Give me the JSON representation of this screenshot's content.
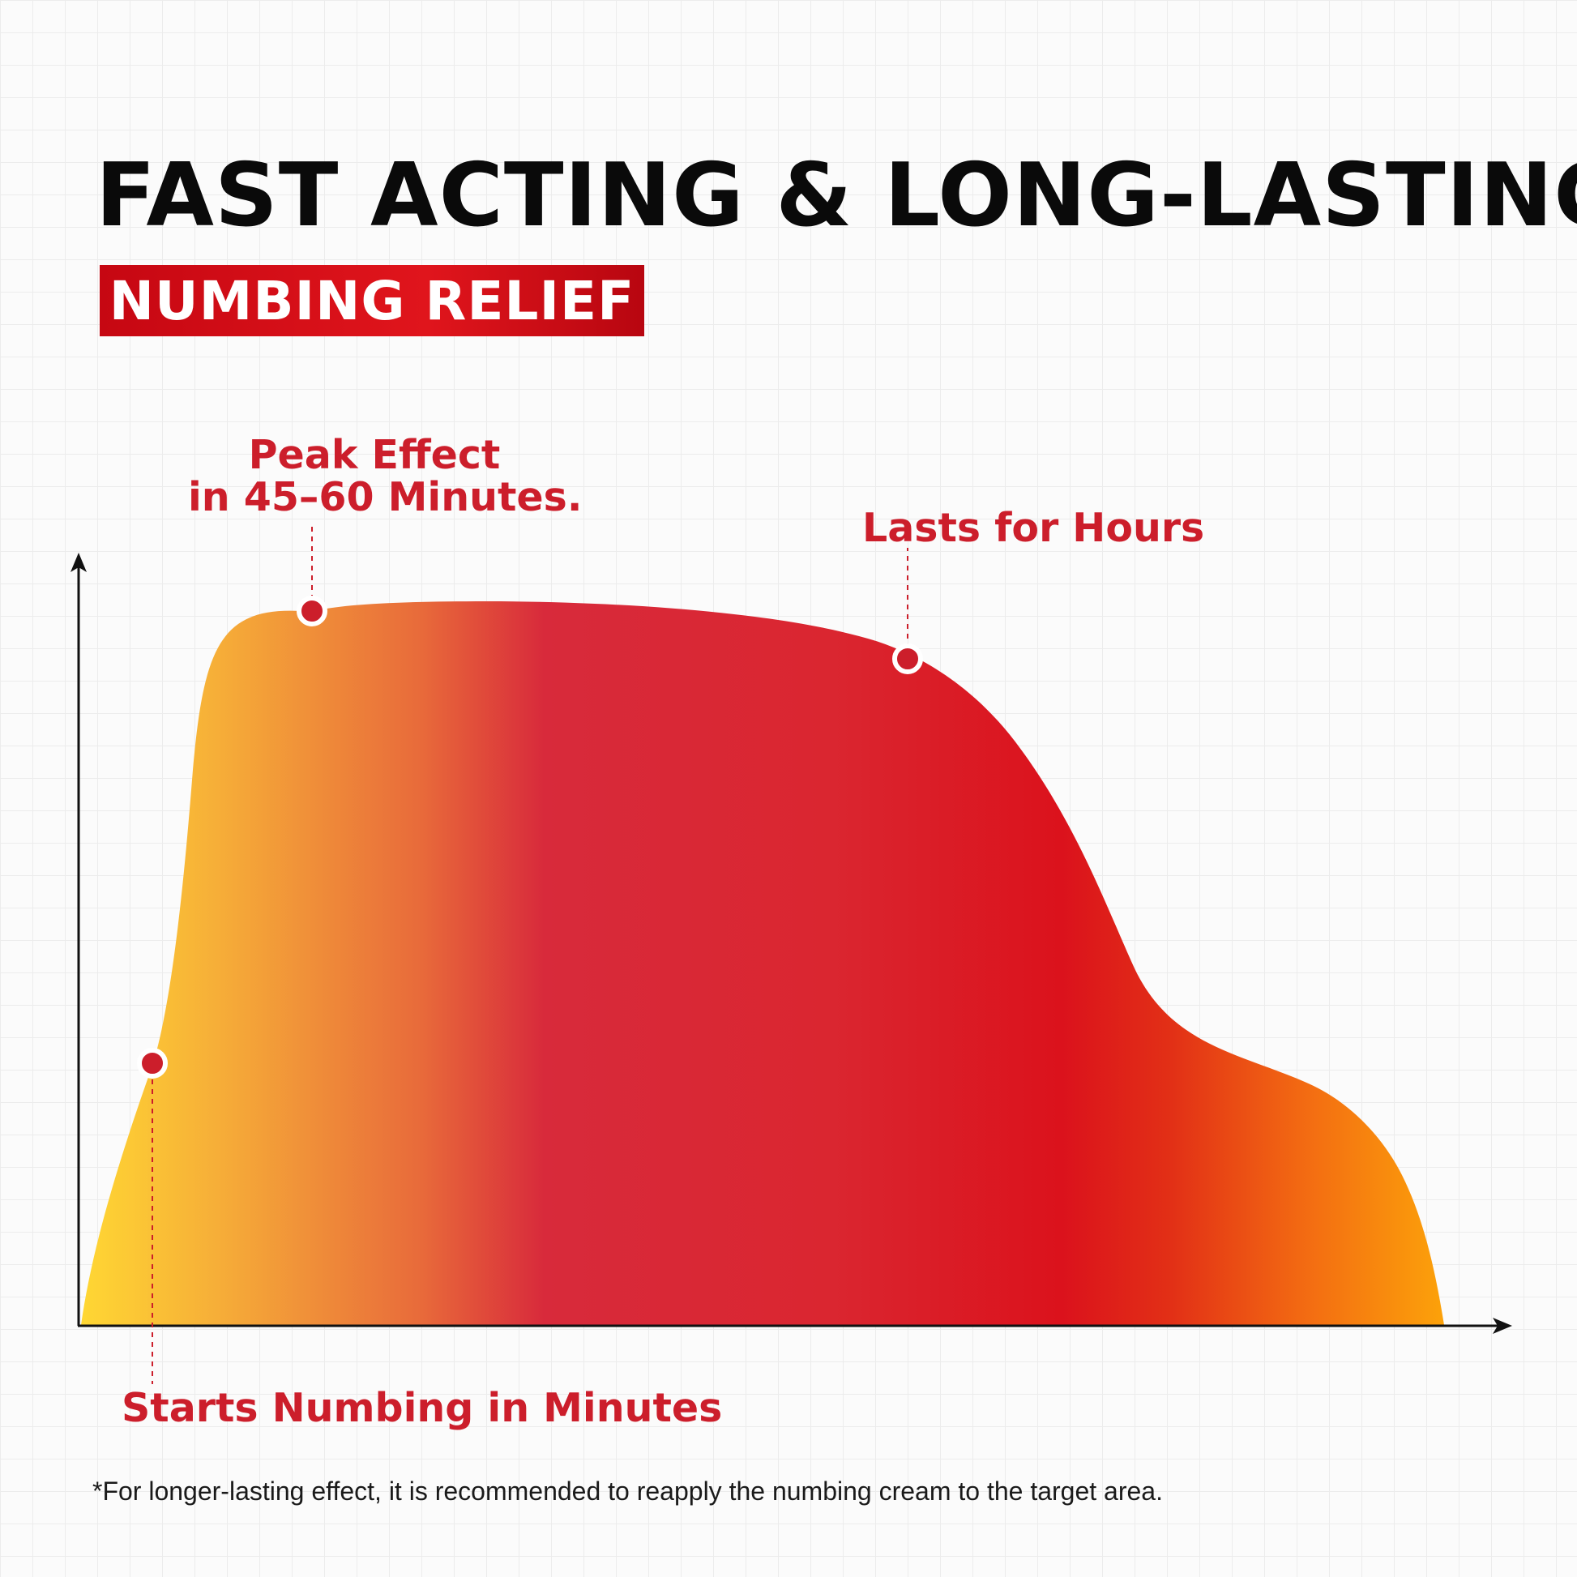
{
  "header": {
    "title": "FAST ACTING & LONG-LASTING",
    "badge": "NUMBING RELIEF"
  },
  "colors": {
    "accent": "#cc1e2b",
    "badge_red": "#d80f16",
    "gradient_start": "#ffd733",
    "gradient_mid": "#d82835",
    "gradient_end": "#fca20a"
  },
  "annotations": {
    "peak_line1": "Peak Effect",
    "peak_line2": "in 45–60 Minutes.",
    "lasts": "Lasts for Hours",
    "starts": "Starts Numbing in Minutes"
  },
  "footnote": "*For longer-lasting effect, it is recommended to reapply the numbing cream to the target area.",
  "chart_data": {
    "type": "area",
    "x_axis": "time",
    "y_axis": "numbing effect",
    "axis_ticks": false,
    "grid": false,
    "series": [
      {
        "values": [
          0,
          35,
          67,
          90,
          100,
          101,
          101,
          100,
          98,
          93,
          86,
          66,
          40,
          36,
          30,
          15,
          0
        ]
      }
    ],
    "markers": [
      {
        "label": "Starts Numbing in Minutes",
        "index": 1
      },
      {
        "label": "Peak Effect in 45–60 Minutes.",
        "index": 4
      },
      {
        "label": "Lasts for Hours",
        "index": 9
      }
    ]
  }
}
